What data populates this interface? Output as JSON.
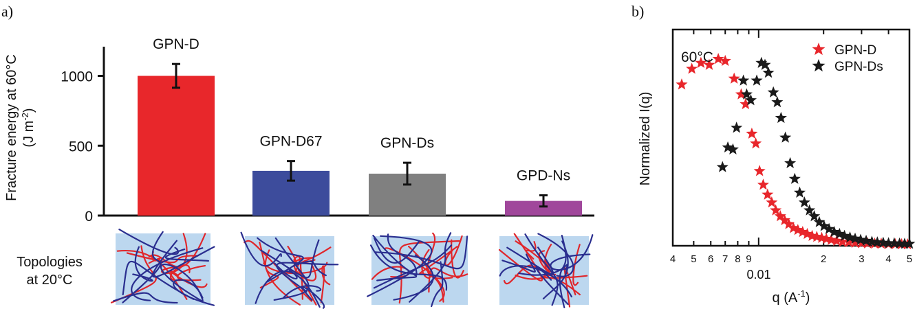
{
  "panel_a": {
    "panel_label": "a)",
    "ylabel_line1": "Fracture energy at 60°C",
    "ylabel_line2": "(J m",
    "ylabel_sup": "-2",
    "ylabel_close": ")",
    "topologies_line1": "Topologies",
    "topologies_line2": "at 20°C",
    "colors": {
      "line_red": "#e0262b",
      "line_blue": "#2a2e8f",
      "box": "#bcd7ef"
    }
  },
  "panel_b": {
    "panel_label": "b)",
    "ylabel": "Normalized I(q)",
    "xlabel_main": "q (A",
    "xlabel_sup": "-1",
    "xlabel_close": ")",
    "temp_label": "60°C",
    "decade_label": "0.01"
  },
  "chart_data": [
    {
      "type": "bar",
      "title": "",
      "ylabel": "Fracture energy at 60°C (J m-2)",
      "xlabel": "",
      "categories": [
        "GPN-D",
        "GPN-D67",
        "GPN-Ds",
        "GPD-Ns"
      ],
      "values": [
        1000,
        320,
        300,
        105
      ],
      "errors": [
        85,
        70,
        78,
        40
      ],
      "colors": [
        "#e8272b",
        "#3d4c9c",
        "#808080",
        "#a0479b"
      ],
      "yticks": [
        0,
        500,
        1000
      ],
      "ylim": [
        0,
        1200
      ],
      "grid": false
    },
    {
      "type": "scatter",
      "title": "",
      "xlabel": "q (A-1)",
      "ylabel": "Normalized I(q)",
      "xscale": "log",
      "xlim": [
        0.004,
        0.05
      ],
      "ylim": [
        0,
        1.1
      ],
      "xticks": [
        {
          "value": 0.004,
          "label": "4"
        },
        {
          "value": 0.005,
          "label": "5"
        },
        {
          "value": 0.006,
          "label": "6"
        },
        {
          "value": 0.007,
          "label": "7"
        },
        {
          "value": 0.008,
          "label": "8"
        },
        {
          "value": 0.009,
          "label": "9"
        },
        {
          "value": 0.02,
          "label": "2"
        },
        {
          "value": 0.03,
          "label": "3"
        },
        {
          "value": 0.04,
          "label": "4"
        },
        {
          "value": 0.05,
          "label": "5"
        }
      ],
      "legend": "top-right",
      "grid": false,
      "series": [
        {
          "name": "GPN-D",
          "color": "#e8262b",
          "x": [
            0.0044,
            0.0049,
            0.0054,
            0.0059,
            0.0065,
            0.007,
            0.0077,
            0.0083,
            0.0087,
            0.0093,
            0.0097,
            0.0101,
            0.0105,
            0.011,
            0.0115,
            0.012,
            0.0126,
            0.0132,
            0.0138,
            0.0145,
            0.0152,
            0.016,
            0.0168,
            0.0177,
            0.0186,
            0.0196,
            0.0206,
            0.0217,
            0.023,
            0.0245,
            0.0262,
            0.028,
            0.03,
            0.032,
            0.0345,
            0.037,
            0.04,
            0.043,
            0.046,
            0.049
          ],
          "y": [
            0.82,
            0.9,
            0.93,
            0.92,
            0.95,
            0.94,
            0.85,
            0.77,
            0.72,
            0.57,
            0.52,
            0.38,
            0.31,
            0.26,
            0.22,
            0.18,
            0.15,
            0.13,
            0.11,
            0.09,
            0.08,
            0.07,
            0.06,
            0.05,
            0.045,
            0.04,
            0.035,
            0.03,
            0.025,
            0.02,
            0.018,
            0.015,
            0.013,
            0.012,
            0.011,
            0.01,
            0.009,
            0.008,
            0.008,
            0.007
          ]
        },
        {
          "name": "GPN-Ds",
          "color": "#1a1a1a",
          "x": [
            0.0068,
            0.0072,
            0.0076,
            0.0079,
            0.0085,
            0.0088,
            0.0092,
            0.0098,
            0.0103,
            0.0107,
            0.0111,
            0.0117,
            0.0122,
            0.0127,
            0.0133,
            0.014,
            0.0147,
            0.0155,
            0.0163,
            0.0172,
            0.0181,
            0.0191,
            0.0201,
            0.0212,
            0.0224,
            0.0237,
            0.025,
            0.0265,
            0.028,
            0.0297,
            0.0315,
            0.0335,
            0.0355,
            0.0378,
            0.04,
            0.0425,
            0.045,
            0.0475,
            0.05
          ],
          "y": [
            0.4,
            0.5,
            0.49,
            0.6,
            0.84,
            0.77,
            0.74,
            0.84,
            0.93,
            0.92,
            0.88,
            0.78,
            0.73,
            0.65,
            0.55,
            0.42,
            0.34,
            0.27,
            0.22,
            0.18,
            0.15,
            0.12,
            0.1,
            0.085,
            0.07,
            0.06,
            0.05,
            0.042,
            0.036,
            0.03,
            0.025,
            0.02,
            0.017,
            0.015,
            0.013,
            0.012,
            0.011,
            0.01,
            0.01
          ]
        }
      ]
    }
  ]
}
